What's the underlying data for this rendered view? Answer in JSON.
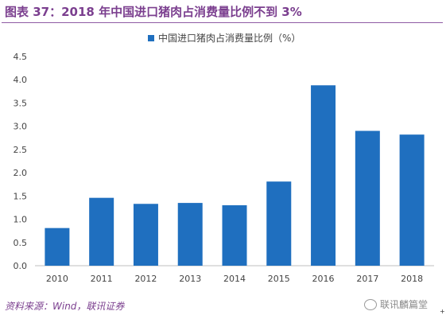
{
  "figure": {
    "title": "图表 37：2018 年中国进口猪肉占消费量比例不到 3%",
    "source": "资料来源：Wind，联讯证券",
    "watermark": "联讯麟篇堂",
    "colors": {
      "accent": "#7b3f8f",
      "bar": "#1f6fbf"
    }
  },
  "chart_data": {
    "type": "bar",
    "categories": [
      "2010",
      "2011",
      "2012",
      "2013",
      "2014",
      "2015",
      "2016",
      "2017",
      "2018"
    ],
    "series": [
      {
        "name": "中国进口猪肉占消费量比例（%）",
        "values": [
          0.81,
          1.46,
          1.33,
          1.35,
          1.3,
          1.81,
          3.88,
          2.9,
          2.82
        ]
      }
    ],
    "ylim": [
      0,
      4.5
    ],
    "yticks": [
      "0.0",
      "0.5",
      "1.0",
      "1.5",
      "2.0",
      "2.5",
      "3.0",
      "3.5",
      "4.0",
      "4.5"
    ],
    "grid": false,
    "legend": "top-center"
  }
}
